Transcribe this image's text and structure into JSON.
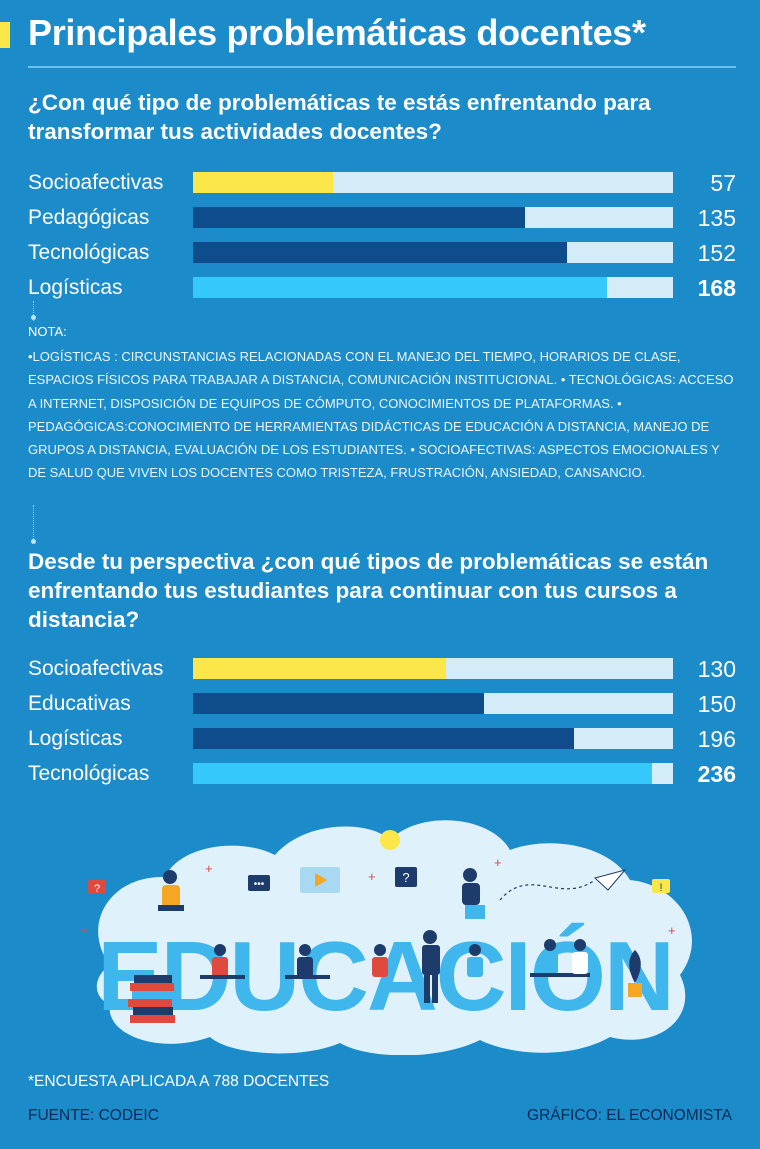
{
  "title": "Principales problemáticas docentes*",
  "questions": {
    "q1": "¿Con qué tipo de problemáticas te estás enfrentando para transformar tus actividades docentes?",
    "q2": "Desde tu perspectiva ¿con qué tipos de problemáticas se están enfrentando tus estudiantes para continuar con tus cursos a distancia?"
  },
  "note": {
    "title": "NOTA:",
    "body": "•LOGÍSTICAS  : CIRCUNSTANCIAS RELACIONADAS CON EL MANEJO DEL TIEMPO, HORARIOS DE CLASE, ESPACIOS FÍSICOS PARA TRABAJAR A DISTANCIA, COMUNICACIÓN INSTITUCIONAL. • TECNOLÓGICAS: ACCESO A INTERNET, DISPOSICIÓN DE EQUIPOS DE CÓMPUTO, CONOCIMIENTOS DE PLATAFORMAS. • PEDAGÓGICAS:CONOCIMIENTO DE HERRAMIENTAS DIDÁCTICAS DE EDUCACIÓN A DISTANCIA, MANEJO DE GRUPOS A DISTANCIA, EVALUACIÓN DE LOS ESTUDIANTES. • SOCIOAFECTIVAS: ASPECTOS EMOCIONALES Y DE SALUD QUE VIVEN LOS DOCENTES COMO TRISTEZA, FRUSTRACIÓN, ANSIEDAD, CANSANCIO."
  },
  "chart_data": [
    {
      "type": "bar",
      "orientation": "horizontal",
      "title": "¿Con qué tipo de problemáticas te estás enfrentando para transformar tus actividades docentes?",
      "categories": [
        "Socioafectivas",
        "Pedagógicas",
        "Tecnológicas",
        "Logísticas"
      ],
      "values": [
        57,
        135,
        152,
        168
      ],
      "max": 195,
      "colors": [
        "#fbe74a",
        "#0f4c8c",
        "#0f4c8c",
        "#35c8fb"
      ],
      "track_color": "#d3ecf8",
      "bold_value_index": 3
    },
    {
      "type": "bar",
      "orientation": "horizontal",
      "title": "Desde tu perspectiva ¿con qué tipos de problemáticas se están enfrentando tus estudiantes para continuar con tus cursos a distancia?",
      "categories": [
        "Socioafectivas",
        "Educativas",
        "Logísticas",
        "Tecnológicas"
      ],
      "values": [
        130,
        150,
        196,
        236
      ],
      "max": 247,
      "colors": [
        "#fbe74a",
        "#0f4c8c",
        "#0f4c8c",
        "#35c8fb"
      ],
      "track_color": "#d3ecf8",
      "bold_value_index": 3
    }
  ],
  "illustration": {
    "word": "EDUCACIÓN",
    "icons": [
      "question-bubble-icon",
      "chat-bubble-icon",
      "video-play-icon",
      "sun-icon",
      "paper-plane-icon",
      "alert-bubble-icon",
      "books-stack-icon",
      "plant-icon"
    ]
  },
  "footer": {
    "footnote": "*ENCUESTA APLICADA A 788 DOCENTES",
    "source": "FUENTE: CODEIC",
    "credit": "GRÁFICO: EL ECONOMISTA"
  }
}
